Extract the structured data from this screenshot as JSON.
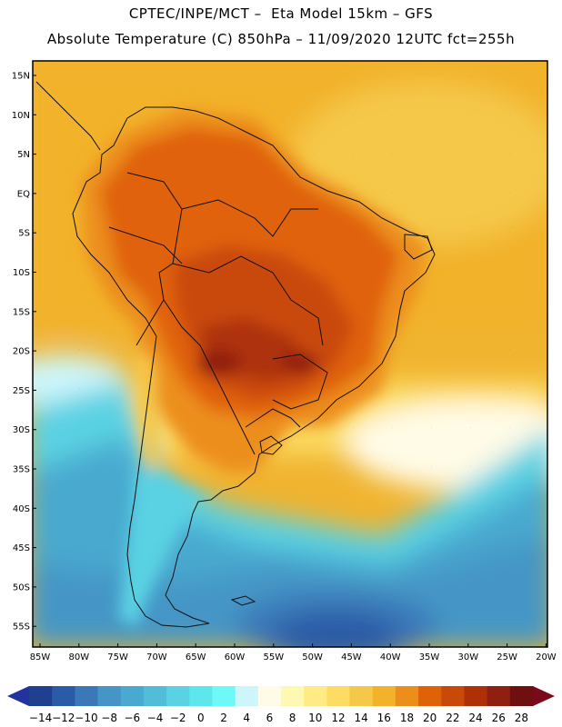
{
  "header": {
    "line1": "CPTEC/INPE/MCT –  Eta Model 15km – GFS",
    "line2": "Absolute Temperature (C) 850hPa – 11/09/2020 12UTC fct=255h"
  },
  "map": {
    "lat_labels": [
      "15N",
      "10N",
      "5N",
      "EQ",
      "5S",
      "10S",
      "15S",
      "20S",
      "25S",
      "30S",
      "35S",
      "40S",
      "45S",
      "50S",
      "55S"
    ],
    "lon_labels": [
      "85W",
      "80W",
      "75W",
      "70W",
      "65W",
      "60W",
      "55W",
      "50W",
      "45W",
      "40W",
      "35W",
      "30W",
      "25W",
      "20W"
    ]
  },
  "colorbar": {
    "labels": [
      "−14",
      "−12",
      "−10",
      "−8",
      "−6",
      "−4",
      "−2",
      "0",
      "2",
      "4",
      "6",
      "8",
      "10",
      "12",
      "14",
      "16",
      "18",
      "20",
      "22",
      "24",
      "26",
      "28"
    ],
    "colors": [
      "#1f3f8f",
      "#2b5aa6",
      "#3a78b8",
      "#4596c6",
      "#4aa9cf",
      "#52bdd9",
      "#5ad2e3",
      "#5de6ec",
      "#6ff8f8",
      "#cdf6fb",
      "#fffbe6",
      "#fff8b0",
      "#ffeb85",
      "#fcdc63",
      "#f5c849",
      "#f2b22a",
      "#ec8e1c",
      "#e06208",
      "#c94a08",
      "#ad3008",
      "#8f1f10",
      "#6f1010"
    ],
    "low_color": "#2233a0",
    "high_color": "#7a0a1a"
  }
}
